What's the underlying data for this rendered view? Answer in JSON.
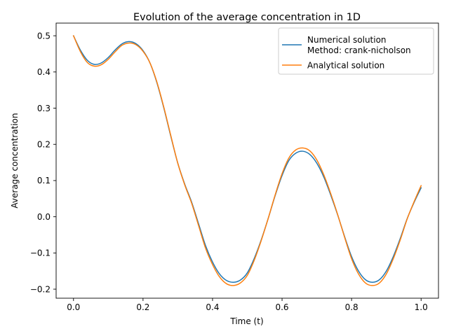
{
  "chart_data": {
    "type": "line",
    "title": "Evolution of the average concentration in 1D",
    "xlabel": "Time (t)",
    "ylabel": "Average concentration",
    "xlim": [
      -0.05,
      1.05
    ],
    "ylim": [
      -0.225,
      0.535
    ],
    "xticks": [
      0.0,
      0.2,
      0.4,
      0.6,
      0.8,
      1.0
    ],
    "xtick_labels": [
      "0.0",
      "0.2",
      "0.4",
      "0.6",
      "0.8",
      "1.0"
    ],
    "yticks": [
      -0.2,
      -0.1,
      0.0,
      0.1,
      0.2,
      0.3,
      0.4,
      0.5
    ],
    "ytick_labels": [
      "−0.2",
      "−0.1",
      "0.0",
      "0.1",
      "0.2",
      "0.3",
      "0.4",
      "0.5"
    ],
    "grid": false,
    "legend_position": "top-right",
    "series": [
      {
        "name": "Numerical solution\nMethod: crank-nicholson",
        "color": "#1f77b4",
        "x": [
          0.0,
          0.02,
          0.04,
          0.06,
          0.08,
          0.1,
          0.12,
          0.14,
          0.16,
          0.18,
          0.2,
          0.22,
          0.24,
          0.26,
          0.28,
          0.3,
          0.32,
          0.34,
          0.36,
          0.38,
          0.4,
          0.42,
          0.44,
          0.46,
          0.48,
          0.5,
          0.52,
          0.54,
          0.56,
          0.58,
          0.6,
          0.62,
          0.64,
          0.66,
          0.68,
          0.7,
          0.72,
          0.74,
          0.76,
          0.78,
          0.8,
          0.82,
          0.84,
          0.86,
          0.88,
          0.9,
          0.92,
          0.94,
          0.96,
          0.98,
          1.0
        ],
        "y": [
          0.5,
          0.46,
          0.432,
          0.421,
          0.425,
          0.44,
          0.461,
          0.478,
          0.484,
          0.478,
          0.459,
          0.425,
          0.37,
          0.3,
          0.222,
          0.148,
          0.09,
          0.04,
          -0.02,
          -0.08,
          -0.125,
          -0.158,
          -0.176,
          -0.181,
          -0.175,
          -0.155,
          -0.115,
          -0.064,
          -0.005,
          0.058,
          0.114,
          0.156,
          0.176,
          0.181,
          0.172,
          0.148,
          0.11,
          0.06,
          0.005,
          -0.055,
          -0.11,
          -0.15,
          -0.174,
          -0.181,
          -0.174,
          -0.15,
          -0.11,
          -0.06,
          -0.005,
          0.04,
          0.08
        ]
      },
      {
        "name": "Analytical solution",
        "color": "#ff7f0e",
        "x": [
          0.0,
          0.02,
          0.04,
          0.06,
          0.08,
          0.1,
          0.12,
          0.14,
          0.16,
          0.18,
          0.2,
          0.22,
          0.24,
          0.26,
          0.28,
          0.3,
          0.32,
          0.34,
          0.36,
          0.38,
          0.4,
          0.42,
          0.44,
          0.46,
          0.48,
          0.5,
          0.52,
          0.54,
          0.56,
          0.58,
          0.6,
          0.62,
          0.64,
          0.66,
          0.68,
          0.7,
          0.72,
          0.74,
          0.76,
          0.78,
          0.8,
          0.82,
          0.84,
          0.86,
          0.88,
          0.9,
          0.92,
          0.94,
          0.96,
          0.98,
          1.0
        ],
        "y": [
          0.5,
          0.456,
          0.426,
          0.416,
          0.42,
          0.435,
          0.456,
          0.474,
          0.48,
          0.475,
          0.457,
          0.425,
          0.372,
          0.302,
          0.224,
          0.148,
          0.088,
          0.037,
          -0.025,
          -0.087,
          -0.132,
          -0.166,
          -0.185,
          -0.19,
          -0.183,
          -0.162,
          -0.12,
          -0.066,
          -0.005,
          0.06,
          0.119,
          0.163,
          0.185,
          0.19,
          0.182,
          0.157,
          0.116,
          0.064,
          0.006,
          -0.057,
          -0.116,
          -0.158,
          -0.183,
          -0.19,
          -0.183,
          -0.158,
          -0.116,
          -0.064,
          -0.006,
          0.042,
          0.086
        ]
      }
    ]
  }
}
